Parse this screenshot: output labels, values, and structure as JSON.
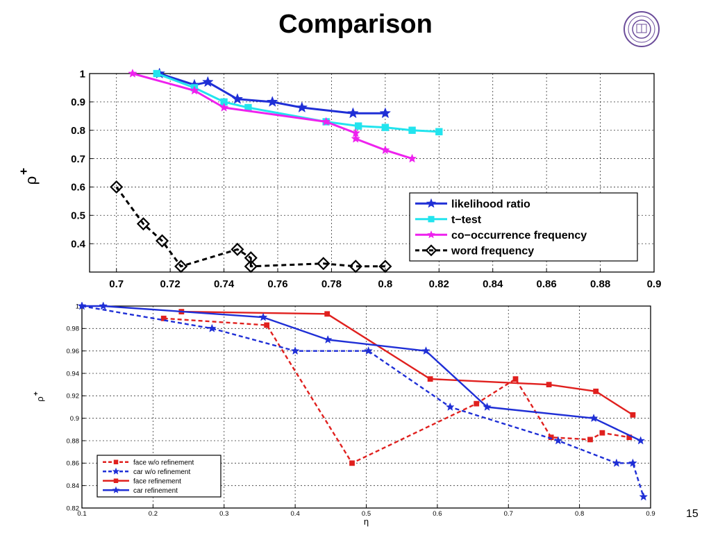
{
  "slide": {
    "title": "Comparison",
    "page_number": "15",
    "logo": {
      "icon": "university-seal",
      "color": "#6b4c9a"
    }
  },
  "chart_data": [
    {
      "type": "line",
      "xlabel": "",
      "ylabel": "ρ",
      "ylabel_superscript": "+",
      "xlim": [
        0.69,
        0.9
      ],
      "ylim": [
        0.3,
        1.0
      ],
      "xticks": [
        0.7,
        0.72,
        0.74,
        0.76,
        0.78,
        0.8,
        0.82,
        0.84,
        0.86,
        0.88,
        0.9
      ],
      "xtick_labels": [
        "0.7",
        "0.72",
        "0.74",
        "0.76",
        "0.78",
        "0.8",
        "0.82",
        "0.84",
        "0.86",
        "0.88",
        "0.9"
      ],
      "yticks": [
        0.4,
        0.5,
        0.6,
        0.7,
        0.8,
        0.9,
        1.0
      ],
      "ytick_labels": [
        "0.4",
        "0.5",
        "0.6",
        "0.7",
        "0.8",
        "0.9",
        "1"
      ],
      "grid": true,
      "legend_position": "bottom-right",
      "series": [
        {
          "name": "likelihood ratio",
          "color": "#1f2fd6",
          "dash": "solid",
          "marker": "star",
          "x": [
            0.716,
            0.729,
            0.734,
            0.745,
            0.758,
            0.769,
            0.788,
            0.8
          ],
          "y": [
            1.0,
            0.96,
            0.97,
            0.91,
            0.9,
            0.88,
            0.86,
            0.86
          ]
        },
        {
          "name": "t−test",
          "color": "#22e4ee",
          "dash": "solid",
          "marker": "square",
          "x": [
            0.715,
            0.729,
            0.74,
            0.749,
            0.778,
            0.79,
            0.8,
            0.81,
            0.82
          ],
          "y": [
            1.0,
            0.95,
            0.9,
            0.88,
            0.83,
            0.815,
            0.81,
            0.8,
            0.795
          ]
        },
        {
          "name": "co−occurrence frequency",
          "color": "#ee22ee",
          "dash": "solid",
          "marker": "pentagram",
          "x": [
            0.706,
            0.729,
            0.74,
            0.778,
            0.789,
            0.789,
            0.8,
            0.81
          ],
          "y": [
            1.0,
            0.94,
            0.88,
            0.83,
            0.79,
            0.77,
            0.73,
            0.7
          ]
        },
        {
          "name": "word frequency",
          "color": "#000000",
          "dash": "dashed",
          "marker": "diamond",
          "x": [
            0.7,
            0.71,
            0.717,
            0.724,
            0.745,
            0.75,
            0.75,
            0.777,
            0.789,
            0.8
          ],
          "y": [
            0.6,
            0.47,
            0.41,
            0.32,
            0.38,
            0.35,
            0.32,
            0.33,
            0.32,
            0.32
          ]
        }
      ]
    },
    {
      "type": "line",
      "xlabel": "η",
      "ylabel": "ρ",
      "ylabel_superscript": "+",
      "xlim": [
        0.1,
        0.9
      ],
      "ylim": [
        0.82,
        1.0
      ],
      "xticks": [
        0.1,
        0.2,
        0.3,
        0.4,
        0.5,
        0.6,
        0.7,
        0.8,
        0.9
      ],
      "xtick_labels": [
        "0.1",
        "0.2",
        "0.3",
        "0.4",
        "0.5",
        "0.6",
        "0.7",
        "0.8",
        "0.9"
      ],
      "yticks": [
        0.82,
        0.84,
        0.86,
        0.88,
        0.9,
        0.92,
        0.94,
        0.96,
        0.98,
        1.0
      ],
      "ytick_labels": [
        "0.82",
        "0.84",
        "0.86",
        "0.88",
        "0.9",
        "0.92",
        "0.94",
        "0.96",
        "0.98",
        "1"
      ],
      "grid": true,
      "legend_position": "bottom-left",
      "series": [
        {
          "name": "face w/o refinement",
          "color": "#e0201e",
          "dash": "dashed",
          "marker": "square",
          "x": [
            0.215,
            0.36,
            0.48,
            0.655,
            0.71,
            0.76,
            0.815,
            0.832,
            0.87
          ],
          "y": [
            0.989,
            0.983,
            0.86,
            0.913,
            0.935,
            0.883,
            0.881,
            0.887,
            0.883
          ]
        },
        {
          "name": "car w/o refinement",
          "color": "#1f2fd6",
          "dash": "dashed",
          "marker": "star",
          "x": [
            0.1,
            0.283,
            0.4,
            0.503,
            0.618,
            0.77,
            0.852,
            0.875,
            0.89
          ],
          "y": [
            1.0,
            0.98,
            0.96,
            0.96,
            0.91,
            0.88,
            0.86,
            0.86,
            0.83
          ]
        },
        {
          "name": "face refinement",
          "color": "#e0201e",
          "dash": "solid",
          "marker": "square",
          "x": [
            0.24,
            0.445,
            0.59,
            0.757,
            0.823,
            0.875
          ],
          "y": [
            0.995,
            0.993,
            0.935,
            0.93,
            0.924,
            0.903
          ]
        },
        {
          "name": "car refinement",
          "color": "#1f2fd6",
          "dash": "solid",
          "marker": "star",
          "x": [
            0.1,
            0.13,
            0.355,
            0.446,
            0.584,
            0.67,
            0.82,
            0.886
          ],
          "y": [
            1.0,
            1.0,
            0.99,
            0.97,
            0.96,
            0.91,
            0.9,
            0.88
          ]
        }
      ]
    }
  ]
}
